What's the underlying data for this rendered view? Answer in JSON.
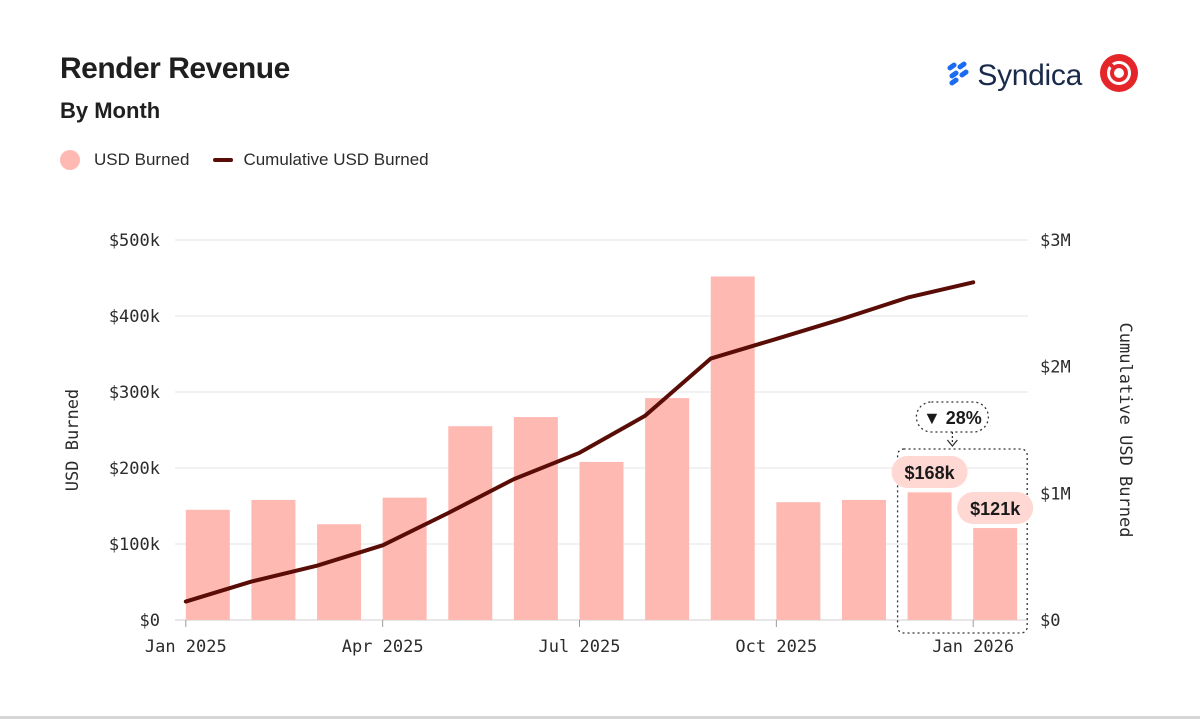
{
  "header": {
    "title": "Render Revenue",
    "subtitle": "By Month",
    "brand_name": "Syndica",
    "brand_icon": "syndica-logo-icon",
    "partner_icon": "render-logo-icon"
  },
  "legend": {
    "bars_label": "USD Burned",
    "line_label": "Cumulative USD Burned"
  },
  "colors": {
    "bar": "#ffb9b3",
    "line": "#5a0d06",
    "grid": "#e6e6e6",
    "axis_text": "#2b2b2b",
    "badge_bg": "#ffd7d3",
    "brand_blue": "#1b6cf2",
    "partner_red": "#e4262b"
  },
  "chart_data": {
    "type": "bar",
    "title": "Render Revenue",
    "subtitle": "By Month",
    "categories": [
      "Jan 2025",
      "Feb 2025",
      "Mar 2025",
      "Apr 2025",
      "May 2025",
      "Jun 2025",
      "Jul 2025",
      "Aug 2025",
      "Sep 2025",
      "Oct 2025",
      "Nov 2025",
      "Dec 2025",
      "Jan 2026"
    ],
    "x_tick_labels": [
      {
        "index": 0,
        "label": "Jan 2025"
      },
      {
        "index": 3,
        "label": "Apr 2025"
      },
      {
        "index": 6,
        "label": "Jul 2025"
      },
      {
        "index": 9,
        "label": "Oct 2025"
      },
      {
        "index": 12,
        "label": "Jan 2026"
      }
    ],
    "series": [
      {
        "name": "USD Burned",
        "type": "bar",
        "axis": "left",
        "values": [
          145000,
          158000,
          126000,
          161000,
          255000,
          267000,
          208000,
          292000,
          452000,
          155000,
          158000,
          168000,
          121000
        ]
      },
      {
        "name": "Cumulative USD Burned",
        "type": "line",
        "axis": "right",
        "x_offset": 0.5,
        "values": [
          145000,
          303000,
          429000,
          590000,
          845000,
          1112000,
          1320000,
          1612000,
          2064000,
          2219000,
          2377000,
          2545000,
          2666000
        ]
      }
    ],
    "ylabel": "USD Burned",
    "ylim": [
      0,
      500000
    ],
    "yticks": [
      "$0",
      "$100k",
      "$200k",
      "$300k",
      "$400k",
      "$500k"
    ],
    "y2label": "Cumulative USD Burned",
    "y2lim": [
      0,
      3000000
    ],
    "y2ticks": [
      "$0",
      "$1M",
      "$2M",
      "$3M"
    ],
    "grid": true,
    "legend_position": "top-left",
    "annotations": {
      "labels": [
        {
          "index": 11,
          "text": "$168k"
        },
        {
          "index": 12,
          "text": "$121k"
        }
      ],
      "change": {
        "text": "▼ 28%",
        "from_index": 11,
        "to_index": 12
      }
    }
  }
}
